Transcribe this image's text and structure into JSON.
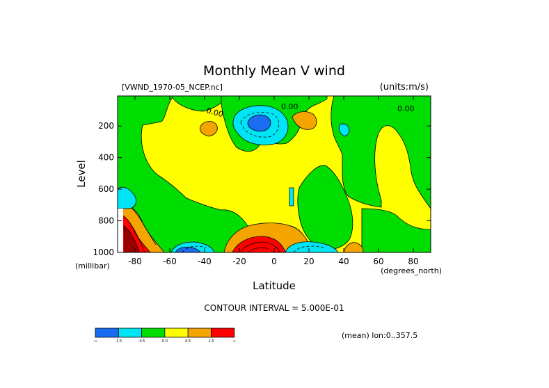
{
  "title": "Monthly Mean V wind",
  "file_label": "[VWND_1970-05_NCEP.nc]",
  "units_label": "(units:m/s)",
  "contour_interval_label": "CONTOUR INTERVAL = 5.000E-01",
  "mean_label": "(mean) lon:0..357.5",
  "chart_data": {
    "type": "heatmap",
    "xlabel": "Latitude",
    "xunit": "(degrees_north)",
    "ylabel": "Level",
    "yunit": "(millibar)",
    "xlim": [
      -90,
      90
    ],
    "ylim": [
      1000,
      10
    ],
    "x_ticks": [
      {
        "value": -80,
        "label": "-80"
      },
      {
        "value": -60,
        "label": "-60"
      },
      {
        "value": -40,
        "label": "-40"
      },
      {
        "value": -20,
        "label": "-20"
      },
      {
        "value": 0,
        "label": "0"
      },
      {
        "value": 20,
        "label": "20"
      },
      {
        "value": 40,
        "label": "40"
      },
      {
        "value": 60,
        "label": "60"
      },
      {
        "value": 80,
        "label": "80"
      }
    ],
    "y_ticks": [
      {
        "value": 200,
        "label": "200"
      },
      {
        "value": 400,
        "label": "400"
      },
      {
        "value": 600,
        "label": "600"
      },
      {
        "value": 800,
        "label": "800"
      },
      {
        "value": 1000,
        "label": "1000"
      }
    ],
    "contour_labels": [
      {
        "lat": -38,
        "lev": 90,
        "text": "0.00"
      },
      {
        "lat": 9,
        "lev": 70,
        "text": "0.00"
      },
      {
        "lat": 75,
        "lev": 75,
        "text": "0.00"
      }
    ],
    "colorbar": {
      "colors": [
        "#1a6cf0",
        "#00e5f5",
        "#00dd00",
        "#ffff00",
        "#f5a500",
        "#ff0000"
      ],
      "labels": [
        "-∞",
        "-1.5",
        "-0.5",
        "0.0",
        "0.5",
        "1.5",
        "∞"
      ]
    }
  }
}
